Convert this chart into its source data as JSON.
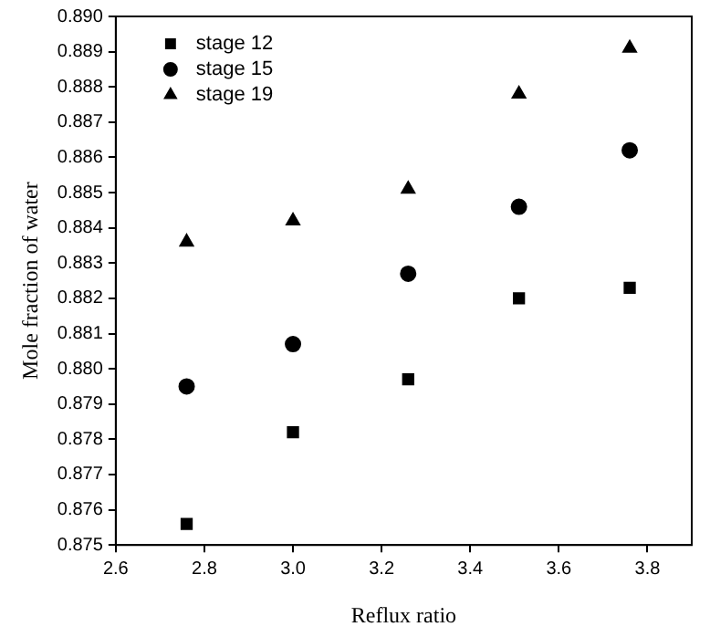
{
  "chart_data": {
    "type": "scatter",
    "xlabel": "Reflux ratio",
    "ylabel": "Mole fraction of water",
    "x": [
      2.76,
      3.0,
      3.26,
      3.51,
      3.76
    ],
    "series": [
      {
        "name": "stage 12",
        "color": "#000000",
        "marker": "square",
        "values": [
          0.8756,
          0.8782,
          0.8797,
          0.882,
          0.8823
        ]
      },
      {
        "name": "stage 15",
        "color": "#000000",
        "marker": "circle",
        "values": [
          0.8795,
          0.8807,
          0.8827,
          0.8846,
          0.8862
        ]
      },
      {
        "name": "stage 19",
        "color": "#000000",
        "marker": "triangle",
        "values": [
          0.8836,
          0.8842,
          0.8851,
          0.8878,
          0.8891
        ]
      }
    ],
    "xlim": [
      2.6,
      3.9
    ],
    "xticks": [
      2.6,
      2.8,
      {
        "value": 3,
        "label": "3.0"
      },
      3.2,
      3.4,
      3.6,
      3.8
    ],
    "ylim": [
      0.875,
      0.89
    ],
    "yticks": [
      0.875,
      0.876,
      0.877,
      0.878,
      0.879,
      {
        "value": 0.88,
        "label": "0.880"
      },
      0.881,
      0.882,
      0.883,
      0.884,
      0.885,
      0.886,
      0.887,
      0.888,
      0.889,
      {
        "value": 0.89,
        "label": "0.890"
      }
    ],
    "grid": false,
    "legend": "top left"
  }
}
